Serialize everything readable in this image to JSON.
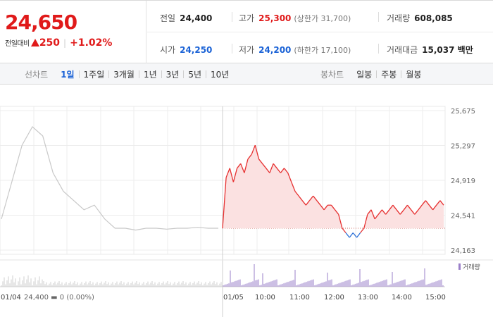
{
  "summary": {
    "price": "24,650",
    "change_label": "전일대비",
    "change_amount": "250",
    "change_rate": "+1.02%"
  },
  "stats": {
    "prev_close": {
      "label": "전일",
      "value": "24,400"
    },
    "high": {
      "label": "고가",
      "value": "25,300",
      "sub": "(상한가 31,700)"
    },
    "volume": {
      "label": "거래량",
      "value": "608,085"
    },
    "open": {
      "label": "시가",
      "value": "24,250"
    },
    "low": {
      "label": "저가",
      "value": "24,200",
      "sub": "(하한가 17,100)"
    },
    "turnover": {
      "label": "거래대금",
      "value": "15,037 백만"
    }
  },
  "tabs": {
    "line_label": "선차트",
    "line_periods": [
      "1일",
      "1주일",
      "3개월",
      "1년",
      "3년",
      "5년",
      "10년"
    ],
    "active_line": "1일",
    "candle_label": "봉차트",
    "candle_periods": [
      "일봉",
      "주봉",
      "월봉"
    ]
  },
  "chart_data": {
    "type": "line",
    "title": "",
    "ylim": [
      24163,
      25675
    ],
    "y_ticks": [
      "25,675",
      "25,297",
      "24,919",
      "24,541",
      "24,163"
    ],
    "baseline": 24400,
    "x_tick_labels": [
      "01/04",
      "01/05",
      "10:00",
      "11:00",
      "12:00",
      "13:00",
      "14:00",
      "15:00"
    ],
    "prev_day_caption": "24,400 ▬ 0 (0.00%)",
    "volume_legend": "거래량",
    "colors": {
      "up": "#e63030",
      "down": "#2b6fd6",
      "prev": "#c8c8c8",
      "fill": "#fbe1e1",
      "volume": "#9a7fc9"
    },
    "prev_day_values": [
      24500,
      24900,
      25300,
      25500,
      25400,
      25000,
      24800,
      24700,
      24600,
      24650,
      24500,
      24400,
      24400,
      24380,
      24400,
      24400,
      24390,
      24400,
      24400,
      24410,
      24400,
      24400
    ],
    "today_values": [
      24400,
      24950,
      25050,
      24900,
      25050,
      25100,
      25000,
      25150,
      25200,
      25300,
      25150,
      25100,
      25050,
      25000,
      25100,
      25050,
      25000,
      25050,
      25000,
      24900,
      24800,
      24750,
      24700,
      24650,
      24700,
      24750,
      24700,
      24650,
      24600,
      24650,
      24650,
      24600,
      24550,
      24400,
      24350,
      24300,
      24350,
      24300,
      24350,
      24400,
      24550,
      24600,
      24500,
      24550,
      24600,
      24550,
      24600,
      24650,
      24600,
      24550,
      24600,
      24650,
      24600,
      24550,
      24600,
      24650,
      24700,
      24650,
      24600,
      24650,
      24700,
      24650
    ]
  }
}
